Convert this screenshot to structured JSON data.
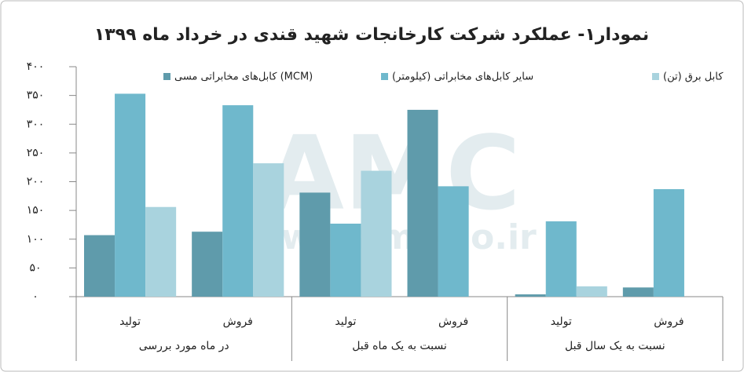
{
  "chart_data": {
    "type": "bar",
    "title": "نمودار۱- عملکرد شرکت کارخانجات شهید قندی در خرداد ماه ۱۳۹۹",
    "watermark": [
      "AMC",
      "www.amc-co.ir"
    ],
    "categories": [
      "تولید",
      "فروش",
      "تولید",
      "فروش",
      "تولید",
      "فروش"
    ],
    "groups": [
      "در ماه مورد بررسی",
      "نسبت به یک ماه قبل",
      "نسبت به یک سال قبل"
    ],
    "series": [
      {
        "name": "کابل‌های مخابراتی مسی (MCM)",
        "color": "#5f9bab",
        "values": [
          107,
          113,
          181,
          325,
          4,
          16
        ]
      },
      {
        "name": "سایر کابل‌های مخابراتی (کیلومتر)",
        "color": "#6fb8cc",
        "values": [
          353,
          333,
          127,
          192,
          131,
          187
        ]
      },
      {
        "name": "کابل برق (تن)",
        "color": "#a9d3de",
        "values": [
          156,
          232,
          219,
          null,
          18,
          null
        ]
      }
    ],
    "ylim": [
      0,
      400
    ],
    "yticks": [
      {
        "value": 0,
        "label": "۰"
      },
      {
        "value": 50,
        "label": "۵۰"
      },
      {
        "value": 100,
        "label": "۱۰۰"
      },
      {
        "value": 150,
        "label": "۱۵۰"
      },
      {
        "value": 200,
        "label": "۲۰۰"
      },
      {
        "value": 250,
        "label": "۲۵۰"
      },
      {
        "value": 300,
        "label": "۳۰۰"
      },
      {
        "value": 350,
        "label": "۳۵۰"
      },
      {
        "value": 400,
        "label": "۴۰۰"
      }
    ],
    "grid": false
  }
}
